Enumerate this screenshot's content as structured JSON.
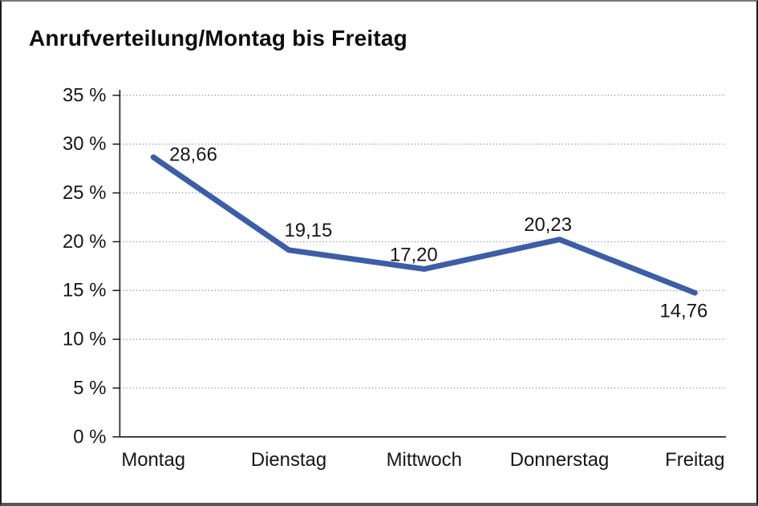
{
  "chart_data": {
    "type": "line",
    "title": "Anrufverteilung/Montag bis Freitag",
    "categories": [
      "Montag",
      "Dienstag",
      "Mittwoch",
      "Donnerstag",
      "Freitag"
    ],
    "series": [
      {
        "name": "Anrufverteilung",
        "values": [
          28.66,
          19.15,
          17.2,
          20.23,
          14.76
        ]
      }
    ],
    "point_labels": [
      "28,66",
      "19,15",
      "17,20",
      "20,23",
      "14,76"
    ],
    "xlabel": "",
    "ylabel": "",
    "ylim": [
      0,
      35
    ],
    "yticks": [
      0,
      5,
      10,
      15,
      20,
      25,
      30,
      35
    ],
    "ytick_labels": [
      "0 %",
      "5 %",
      "10 %",
      "15 %",
      "20 %",
      "25 %",
      "30 %",
      "35 %"
    ],
    "grid": "horizontal-dotted",
    "legend_position": "none",
    "line_color": "#3C5EA8",
    "axis_color": "#1a1a1a",
    "gridline_color": "#8c8c8c"
  }
}
